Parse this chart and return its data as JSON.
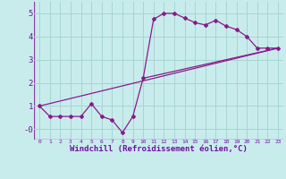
{
  "bg_color": "#c8ecec",
  "grid_color": "#a8d4d4",
  "line_color": "#8b1a8b",
  "xlabel": "Windchill (Refroidissement éolien,°C)",
  "xlabel_fontsize": 6.5,
  "ylabel_ticks": [
    0,
    1,
    2,
    3,
    4,
    5
  ],
  "ylabel_labels": [
    "-0",
    "1",
    "2",
    "3",
    "4",
    "5"
  ],
  "xlim": [
    -0.5,
    23.5
  ],
  "ylim": [
    -0.45,
    5.5
  ],
  "xtick_labels": [
    "0",
    "1",
    "2",
    "3",
    "4",
    "5",
    "6",
    "7",
    "8",
    "9",
    "10",
    "11",
    "12",
    "13",
    "14",
    "15",
    "16",
    "17",
    "18",
    "19",
    "20",
    "21",
    "22",
    "23"
  ],
  "line1_x": [
    0,
    1,
    2,
    3,
    4,
    5,
    6,
    7,
    8,
    9,
    10,
    11,
    12,
    13,
    14,
    15,
    16,
    17,
    18,
    19,
    20,
    21,
    22,
    23
  ],
  "line1_y": [
    1.0,
    0.55,
    0.55,
    0.55,
    0.55,
    1.1,
    0.55,
    0.4,
    -0.15,
    0.55,
    2.2,
    4.75,
    5.0,
    5.0,
    4.8,
    4.6,
    4.5,
    4.7,
    4.45,
    4.3,
    4.0,
    3.5,
    3.5,
    3.5
  ],
  "line2_x": [
    0,
    23
  ],
  "line2_y": [
    1.0,
    3.5
  ],
  "line3_x": [
    10,
    23
  ],
  "line3_y": [
    2.2,
    3.5
  ],
  "border_color": "#9040a0"
}
